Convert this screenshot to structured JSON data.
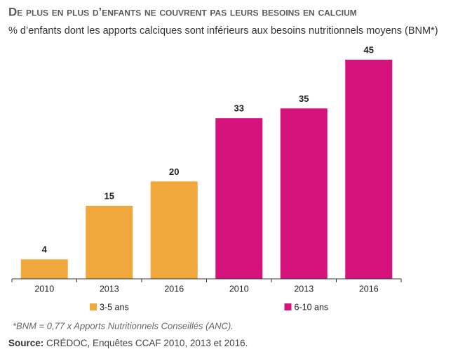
{
  "chart_data": {
    "type": "bar",
    "title": "De plus en plus d’enfants ne couvrent pas leurs besoins en calcium",
    "subtitle": "% d’enfants dont les apports calciques sont inférieurs aux besoins nutritionnels moyens (BNM*)",
    "categories": [
      "2010",
      "2013",
      "2016",
      "2010",
      "2013",
      "2016"
    ],
    "series": [
      {
        "name": "3-5 ans",
        "color": "#f0a83c",
        "values": [
          4,
          15,
          20,
          null,
          null,
          null
        ]
      },
      {
        "name": "6-10 ans",
        "color": "#d6127d",
        "values": [
          null,
          null,
          null,
          33,
          35,
          45
        ]
      }
    ],
    "footnote": "*BNM = 0,77 x Apports Nutritionnels Conseillés (ANC).",
    "source_label": "Source:",
    "source_text": " CRÉDOC, Enquêtes CCAF 2010, 2013 et 2016."
  }
}
